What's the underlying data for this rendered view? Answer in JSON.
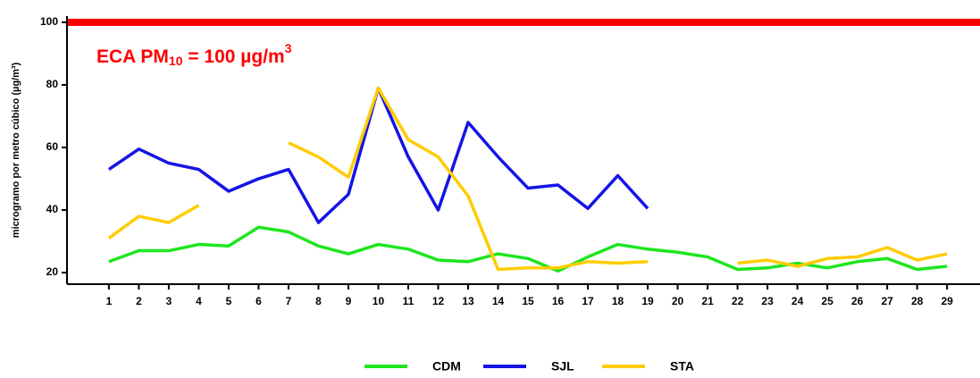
{
  "chart_data": {
    "type": "line",
    "ylabel": "microgramo por metro cúbico (µg/m³)",
    "annotation": {
      "text": "ECA PM",
      "sub": "10",
      "text2": " = 100 µg/m",
      "sup": "3",
      "color": "#ff0000"
    },
    "threshold": 100,
    "threshold_color": "#ff0000",
    "x": [
      1,
      2,
      3,
      4,
      5,
      6,
      7,
      8,
      9,
      10,
      11,
      12,
      13,
      14,
      15,
      16,
      17,
      18,
      19,
      20,
      21,
      22,
      23,
      24,
      25,
      26,
      27,
      28,
      29
    ],
    "xlim": [
      -0.4,
      30.1
    ],
    "xticks": [
      1,
      2,
      3,
      4,
      5,
      6,
      7,
      8,
      9,
      10,
      11,
      12,
      13,
      14,
      15,
      16,
      17,
      18,
      19,
      20,
      21,
      22,
      23,
      24,
      25,
      26,
      27,
      28,
      29
    ],
    "ylim": [
      16.3,
      102
    ],
    "yticks": [
      20,
      40,
      60,
      80,
      100
    ],
    "grid": false,
    "legend": "bottom",
    "series": [
      {
        "name": "CDM",
        "color": "#1ee61e",
        "values": [
          23.5,
          27,
          27,
          29,
          28.5,
          34.5,
          33,
          28.5,
          26,
          29,
          27.5,
          24,
          23.5,
          26,
          24.5,
          20.5,
          25,
          29,
          27.5,
          26.5,
          25,
          21,
          21.5,
          23,
          21.5,
          23.5,
          24.5,
          21,
          22
        ]
      },
      {
        "name": "SJL",
        "color": "#1414e6",
        "values": [
          53,
          59.5,
          55,
          53,
          46,
          50,
          53,
          36,
          45,
          79,
          57,
          40,
          68,
          57,
          47,
          48,
          40.5,
          51,
          40.5,
          null,
          null,
          null,
          null,
          null,
          null,
          null,
          null,
          null,
          null
        ]
      },
      {
        "name": "STA",
        "color": "#ffcc00",
        "values": [
          31,
          38,
          36,
          41.5,
          null,
          null,
          61.5,
          57,
          50.5,
          79,
          62.5,
          57,
          44.5,
          21,
          21.5,
          21.5,
          23.5,
          23,
          23.5,
          null,
          null,
          23,
          24,
          22,
          24.5,
          25,
          28,
          24,
          26
        ]
      }
    ]
  }
}
